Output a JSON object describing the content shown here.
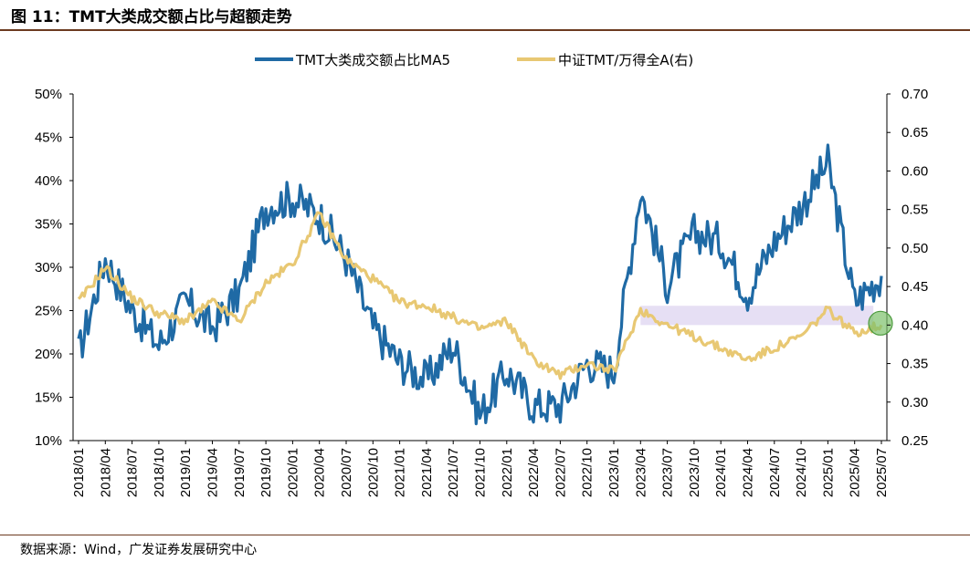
{
  "title": "图 11：TMT大类成交额占比与超额走势",
  "source": "数据来源：Wind，广发证券发展研究中心",
  "colors": {
    "blue": "#1f6aa5",
    "gold": "#e8c873",
    "band": "#e3dcf3",
    "circle": "#7cc06b"
  },
  "chart_data": {
    "type": "line",
    "title": "TMT大类成交额占比与超额走势",
    "x": [
      "2018/01",
      "2018/04",
      "2018/07",
      "2018/10",
      "2019/01",
      "2019/04",
      "2019/07",
      "2019/10",
      "2020/01",
      "2020/04",
      "2020/07",
      "2020/10",
      "2021/01",
      "2021/04",
      "2021/07",
      "2021/10",
      "2022/01",
      "2022/04",
      "2022/07",
      "2022/10",
      "2023/01",
      "2023/04",
      "2023/07",
      "2023/10",
      "2024/01",
      "2024/04",
      "2024/07",
      "2024/10",
      "2025/01",
      "2025/04",
      "2025/07"
    ],
    "y_left": {
      "min": 0.1,
      "max": 0.5,
      "ticks": [
        "10%",
        "15%",
        "20%",
        "25%",
        "30%",
        "35%",
        "40%",
        "45%",
        "50%"
      ]
    },
    "y_right": {
      "min": 0.25,
      "max": 0.7,
      "ticks": [
        "0.25",
        "0.30",
        "0.35",
        "0.40",
        "0.45",
        "0.50",
        "0.55",
        "0.60",
        "0.65",
        "0.70"
      ]
    },
    "series": [
      {
        "name": "TMT大类成交额占比MA5",
        "axis": "left",
        "values": [
          0.2,
          0.31,
          0.25,
          0.21,
          0.26,
          0.23,
          0.27,
          0.37,
          0.38,
          0.36,
          0.31,
          0.23,
          0.19,
          0.17,
          0.21,
          0.13,
          0.18,
          0.14,
          0.14,
          0.19,
          0.18,
          0.39,
          0.28,
          0.34,
          0.33,
          0.27,
          0.33,
          0.37,
          0.42,
          0.26,
          0.29
        ]
      },
      {
        "name": "中证TMT/万得全A(右)",
        "axis": "right",
        "values": [
          0.43,
          0.475,
          0.435,
          0.415,
          0.405,
          0.43,
          0.405,
          0.455,
          0.48,
          0.545,
          0.485,
          0.46,
          0.43,
          0.425,
          0.41,
          0.395,
          0.405,
          0.355,
          0.335,
          0.35,
          0.34,
          0.42,
          0.4,
          0.385,
          0.37,
          0.355,
          0.37,
          0.385,
          0.42,
          0.39,
          0.4
        ]
      }
    ],
    "annotation": {
      "label": "highlight-band",
      "range_right_axis": [
        0.4,
        0.425
      ],
      "from": "2023/04",
      "to": "2025/06"
    }
  }
}
